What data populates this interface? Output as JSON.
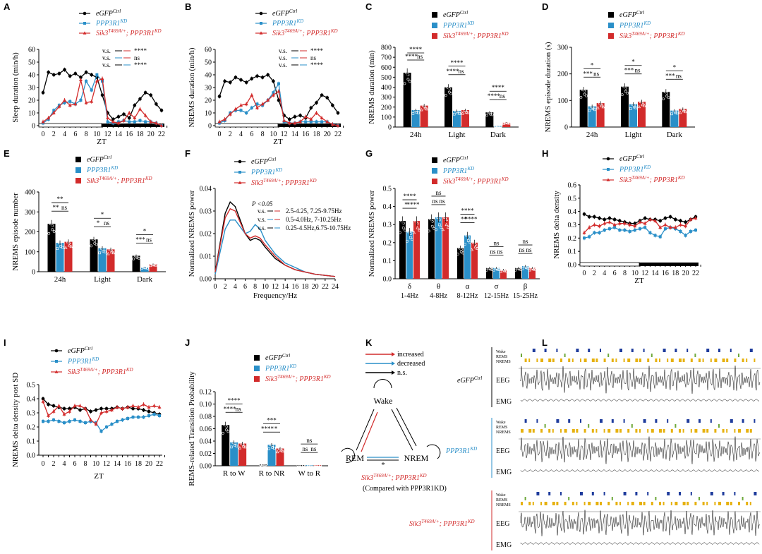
{
  "colors": {
    "ctrl": "#000000",
    "kd": "#2a8fc8",
    "sik": "#d22b2b",
    "wake": "#1f3c9c",
    "rems": "#6ea83a",
    "nrems": "#e6b10e"
  },
  "legend": {
    "ctrl": "eGFPCtrl",
    "kd": "PPP3R1KD",
    "sik": "Sik3T469A/+; PPP3R1KD"
  },
  "panel_labels": [
    "A",
    "B",
    "C",
    "D",
    "E",
    "F",
    "G",
    "H",
    "I",
    "J",
    "K",
    "L"
  ],
  "zt_label": "ZT",
  "chart_data": [
    {
      "id": "A",
      "type": "line",
      "ylabel": "Sleep duration (min/h)",
      "xlabel": "ZT",
      "ylim": [
        0,
        60
      ],
      "yticks": [
        0,
        10,
        20,
        30,
        40,
        50,
        60
      ],
      "xticks": [
        "0",
        "2",
        "4",
        "6",
        "8",
        "10",
        "12",
        "14",
        "16",
        "18",
        "20",
        "22"
      ],
      "stats": [
        {
          "text": "v.s.",
          "line": "ctrl-sik",
          "sig": "****"
        },
        {
          "text": "v.s.",
          "line": "kd-sik",
          "sig": "ns"
        },
        {
          "text": "v.s.",
          "line": "ctrl-kd",
          "sig": "****"
        }
      ],
      "series": [
        {
          "key": "ctrl",
          "values": [
            26,
            42,
            40,
            41,
            44,
            39,
            41,
            38,
            42,
            40,
            38,
            24,
            10,
            5,
            7,
            9,
            6,
            16,
            21,
            26,
            24,
            17,
            12
          ]
        },
        {
          "key": "kd",
          "values": [
            2,
            5,
            12,
            16,
            18,
            19,
            17,
            20,
            35,
            28,
            40,
            35,
            3,
            2,
            3,
            4,
            3,
            3,
            4,
            3,
            3,
            2,
            0
          ]
        },
        {
          "key": "sik",
          "values": [
            3,
            6,
            10,
            15,
            20,
            16,
            17,
            36,
            18,
            19,
            35,
            37,
            6,
            3,
            2,
            4,
            10,
            6,
            13,
            8,
            3,
            2,
            0
          ]
        }
      ]
    },
    {
      "id": "B",
      "type": "line",
      "ylabel": "NREMS duration (min/h)",
      "xlabel": "ZT",
      "ylim": [
        0,
        60
      ],
      "yticks": [
        0,
        10,
        20,
        30,
        40,
        50,
        60
      ],
      "xticks": [
        "0",
        "2",
        "4",
        "6",
        "8",
        "10",
        "12",
        "14",
        "16",
        "18",
        "20",
        "22"
      ],
      "stats": [
        {
          "text": "v.s.",
          "line": "ctrl-sik",
          "sig": "****"
        },
        {
          "text": "v.s.",
          "line": "kd-sik",
          "sig": "ns"
        },
        {
          "text": "v.s.",
          "line": "ctrl-kd",
          "sig": "****"
        }
      ],
      "series": [
        {
          "key": "ctrl",
          "values": [
            23,
            35,
            34,
            38,
            36,
            34,
            37,
            39,
            38,
            40,
            35,
            20,
            8,
            5,
            7,
            8,
            6,
            14,
            18,
            24,
            22,
            16,
            10
          ]
        },
        {
          "key": "kd",
          "values": [
            2,
            4,
            10,
            12,
            12,
            10,
            14,
            17,
            16,
            20,
            26,
            33,
            3,
            2,
            2,
            3,
            3,
            3,
            3,
            3,
            3,
            1,
            0
          ]
        },
        {
          "key": "sik",
          "values": [
            3,
            5,
            9,
            13,
            16,
            17,
            24,
            14,
            17,
            20,
            24,
            27,
            4,
            2,
            2,
            3,
            7,
            5,
            10,
            6,
            3,
            1,
            0
          ]
        }
      ]
    },
    {
      "id": "C",
      "type": "bar",
      "ylabel": "NREMS duration (min)",
      "ylim": [
        0,
        800
      ],
      "yticks": [
        0,
        100,
        200,
        300,
        400,
        500,
        600,
        700,
        800
      ],
      "categories": [
        "24h",
        "Light",
        "Dark"
      ],
      "series": [
        {
          "key": "ctrl",
          "values": [
            545,
            398,
            147
          ]
        },
        {
          "key": "kd",
          "values": [
            170,
            162,
            10
          ]
        },
        {
          "key": "sik",
          "values": [
            215,
            170,
            45
          ]
        }
      ],
      "sig": [
        [
          "****",
          "****",
          "ns"
        ],
        [
          "****",
          "****",
          "ns"
        ],
        [
          "****",
          "****",
          "ns"
        ]
      ]
    },
    {
      "id": "D",
      "type": "bar",
      "ylabel": "NREMS episode duration (s)",
      "ylim": [
        0,
        300
      ],
      "yticks": [
        0,
        100,
        200,
        300
      ],
      "categories": [
        "24h",
        "Light",
        "Dark"
      ],
      "series": [
        {
          "key": "ctrl",
          "values": [
            140,
            152,
            132
          ]
        },
        {
          "key": "kd",
          "values": [
            78,
            86,
            62
          ]
        },
        {
          "key": "sik",
          "values": [
            90,
            95,
            68
          ]
        }
      ],
      "sig": [
        [
          "*",
          "***",
          "ns"
        ],
        [
          "*",
          "***",
          "ns"
        ],
        [
          "*",
          "***",
          "ns"
        ]
      ]
    },
    {
      "id": "E",
      "type": "bar",
      "ylabel": "NREMS episode number",
      "ylim": [
        0,
        400
      ],
      "yticks": [
        0,
        100,
        200,
        300,
        400
      ],
      "categories": [
        "24h",
        "Light",
        "Dark"
      ],
      "series": [
        {
          "key": "ctrl",
          "values": [
            240,
            162,
            80
          ]
        },
        {
          "key": "kd",
          "values": [
            145,
            118,
            22
          ]
        },
        {
          "key": "sik",
          "values": [
            150,
            112,
            38
          ]
        }
      ],
      "sig": [
        [
          "**",
          "**",
          "ns"
        ],
        [
          "*",
          "*",
          "ns"
        ],
        [
          "*",
          "***",
          "ns"
        ]
      ]
    },
    {
      "id": "F",
      "type": "line",
      "ylabel": "Normalized NREMS power",
      "xlabel": "Frequency/Hz",
      "ylim": [
        0,
        0.04
      ],
      "yticks": [
        "0.00",
        "0.01",
        "0.02",
        "0.03",
        "0.04"
      ],
      "xticks": [
        "0",
        "2",
        "4",
        "6",
        "8",
        "10",
        "12",
        "14",
        "16",
        "18",
        "20",
        "22",
        "24"
      ],
      "stats_title": "P <0.05",
      "stats": [
        {
          "text": "v.s.",
          "line": "ctrl-sik",
          "ranges": "2.5-4.25, 7.25-9.75Hz"
        },
        {
          "text": "v.s.",
          "line": "kd-sik",
          "ranges": "0.5-4.0Hz, 7-10.25Hz"
        },
        {
          "text": "v.s.",
          "line": "ctrl-kd",
          "ranges": "0.25-4.5Hz,6.75-10.75Hz"
        }
      ],
      "series": [
        {
          "key": "ctrl",
          "x": [
            0,
            1,
            2,
            3,
            4,
            5,
            6,
            7,
            8,
            9,
            10,
            12,
            14,
            16,
            18,
            20,
            22,
            24
          ],
          "values": [
            0.003,
            0.016,
            0.029,
            0.034,
            0.032,
            0.026,
            0.02,
            0.017,
            0.018,
            0.017,
            0.014,
            0.009,
            0.006,
            0.004,
            0.003,
            0.002,
            0.0015,
            0.001
          ]
        },
        {
          "key": "kd",
          "x": [
            0,
            1,
            2,
            3,
            4,
            5,
            6,
            7,
            8,
            9,
            10,
            12,
            14,
            16,
            18,
            20,
            22,
            24
          ],
          "values": [
            0.002,
            0.012,
            0.022,
            0.026,
            0.026,
            0.023,
            0.02,
            0.021,
            0.024,
            0.022,
            0.017,
            0.011,
            0.007,
            0.005,
            0.003,
            0.002,
            0.0015,
            0.001
          ]
        },
        {
          "key": "sik",
          "x": [
            0,
            1,
            2,
            3,
            4,
            5,
            6,
            7,
            8,
            9,
            10,
            12,
            14,
            16,
            18,
            20,
            22,
            24
          ],
          "values": [
            0.003,
            0.015,
            0.027,
            0.031,
            0.03,
            0.025,
            0.02,
            0.018,
            0.019,
            0.018,
            0.015,
            0.01,
            0.006,
            0.004,
            0.003,
            0.002,
            0.0015,
            0.001
          ]
        }
      ]
    },
    {
      "id": "G",
      "type": "bar",
      "ylabel": "Normalized NREMS power",
      "ylim": [
        0,
        0.5
      ],
      "yticks": [
        "0.0",
        "0.1",
        "0.2",
        "0.3",
        "0.4",
        "0.5"
      ],
      "categories": [
        "δ",
        "θ",
        "α",
        "σ",
        "β"
      ],
      "subcategories": [
        "1-4Hz",
        "4-8Hz",
        "8-12Hz",
        "12-15Hz",
        "15-25Hz"
      ],
      "series": [
        {
          "key": "ctrl",
          "values": [
            0.32,
            0.33,
            0.17,
            0.06,
            0.06
          ]
        },
        {
          "key": "kd",
          "values": [
            0.26,
            0.34,
            0.24,
            0.06,
            0.07
          ]
        },
        {
          "key": "sik",
          "values": [
            0.32,
            0.34,
            0.2,
            0.05,
            0.06
          ]
        }
      ],
      "sig": [
        [
          "****",
          "*",
          "****"
        ],
        [
          "ns",
          "ns",
          "ns"
        ],
        [
          "****",
          "**",
          "****"
        ],
        [
          "ns",
          "ns",
          "ns"
        ],
        [
          "ns",
          "ns",
          "ns"
        ]
      ]
    },
    {
      "id": "H",
      "type": "line",
      "ylabel": "NREMS delta density",
      "xlabel": "ZT",
      "ylim": [
        0,
        0.6
      ],
      "yticks": [
        "0.0",
        "0.1",
        "0.2",
        "0.3",
        "0.4",
        "0.5",
        "0.6"
      ],
      "xticks": [
        "0",
        "2",
        "4",
        "6",
        "8",
        "10",
        "12",
        "14",
        "16",
        "18",
        "20",
        "22"
      ],
      "series": [
        {
          "key": "ctrl",
          "values": [
            0.38,
            0.36,
            0.36,
            0.35,
            0.34,
            0.35,
            0.34,
            0.33,
            0.32,
            0.31,
            0.31,
            0.33,
            0.35,
            0.34,
            0.34,
            0.33,
            0.35,
            0.36,
            0.34,
            0.33,
            0.32,
            0.34,
            0.36
          ]
        },
        {
          "key": "kd",
          "values": [
            0.2,
            0.21,
            0.24,
            0.24,
            0.26,
            0.27,
            0.28,
            0.26,
            0.26,
            0.25,
            0.26,
            0.27,
            0.28,
            0.24,
            0.22,
            0.21,
            0.27,
            0.28,
            0.27,
            0.25,
            0.22,
            0.25,
            0.26
          ]
        },
        {
          "key": "sik",
          "values": [
            0.24,
            0.28,
            0.3,
            0.29,
            0.31,
            0.32,
            0.3,
            0.31,
            0.31,
            0.3,
            0.29,
            0.32,
            0.31,
            0.34,
            0.33,
            0.28,
            0.3,
            0.28,
            0.28,
            0.3,
            0.29,
            0.34,
            0.35
          ]
        }
      ]
    },
    {
      "id": "I",
      "type": "line",
      "ylabel": "NREMS delta density post SD",
      "xlabel": "ZT",
      "ylim": [
        0,
        0.5
      ],
      "yticks": [
        "0.0",
        "0.1",
        "0.2",
        "0.3",
        "0.4",
        "0.5"
      ],
      "xticks": [
        "0",
        "2",
        "4",
        "6",
        "8",
        "10",
        "12",
        "14",
        "16",
        "18",
        "20",
        "22"
      ],
      "series": [
        {
          "key": "ctrl",
          "values": [
            0.4,
            0.36,
            0.35,
            0.34,
            0.33,
            0.33,
            0.34,
            0.32,
            0.33,
            0.31,
            0.32,
            0.33,
            0.33,
            0.33,
            0.34,
            0.33,
            0.34,
            0.33,
            0.33,
            0.32,
            0.31,
            0.3,
            0.29
          ]
        },
        {
          "key": "kd",
          "values": [
            0.24,
            0.24,
            0.25,
            0.24,
            0.23,
            0.24,
            0.25,
            0.24,
            0.23,
            0.24,
            0.23,
            0.17,
            0.2,
            0.22,
            0.24,
            0.25,
            0.26,
            0.27,
            0.27,
            0.27,
            0.28,
            0.29,
            0.28
          ]
        },
        {
          "key": "sik",
          "values": [
            0.38,
            0.28,
            0.31,
            0.35,
            0.29,
            0.31,
            0.35,
            0.35,
            0.33,
            0.25,
            0.22,
            0.3,
            0.31,
            0.32,
            0.34,
            0.33,
            0.34,
            0.35,
            0.34,
            0.36,
            0.34,
            0.35,
            0.34
          ]
        }
      ]
    },
    {
      "id": "J",
      "type": "bar",
      "ylabel": "REMS-related Transition Probability",
      "ylim": [
        0,
        0.12
      ],
      "yticks": [
        "0.00",
        "0.02",
        "0.04",
        "0.06",
        "0.08",
        "0.10",
        "0.12"
      ],
      "categories": [
        "R to W",
        "R to NR",
        "W to R"
      ],
      "series": [
        {
          "key": "ctrl",
          "values": [
            0.066,
            0.002,
            0.001
          ]
        },
        {
          "key": "kd",
          "values": [
            0.038,
            0.034,
            0.001
          ]
        },
        {
          "key": "sik",
          "values": [
            0.036,
            0.028,
            0.001
          ]
        }
      ],
      "sig": [
        [
          "****",
          "****",
          "ns"
        ],
        [
          "***",
          "****",
          "*"
        ],
        [
          "ns",
          "ns",
          "ns"
        ]
      ]
    }
  ],
  "panel_k": {
    "legend": [
      {
        "label": "increased",
        "color": "#d22b2b"
      },
      {
        "label": "decreased",
        "color": "#2a8fc8"
      },
      {
        "label": "n.s.",
        "color": "#000000"
      }
    ],
    "nodes": {
      "wake": "Wake",
      "rem": "REM",
      "nrem": "NREM"
    },
    "star": "*",
    "caption1": "Sik3T469A/+; PPP3R1KD",
    "caption2": "(Compared with PPP3R1KD)"
  },
  "panel_l": {
    "stage_labels": [
      "Wake",
      "REMS",
      "NREMS"
    ],
    "eeg": "EEG",
    "emg": "EMG",
    "rows": [
      {
        "label": "eGFPCtrl",
        "key": "ctrl"
      },
      {
        "label": "PPP3R1KD",
        "key": "kd"
      },
      {
        "label": "Sik3T469A/+; PPP3R1KD",
        "key": "sik"
      }
    ]
  }
}
